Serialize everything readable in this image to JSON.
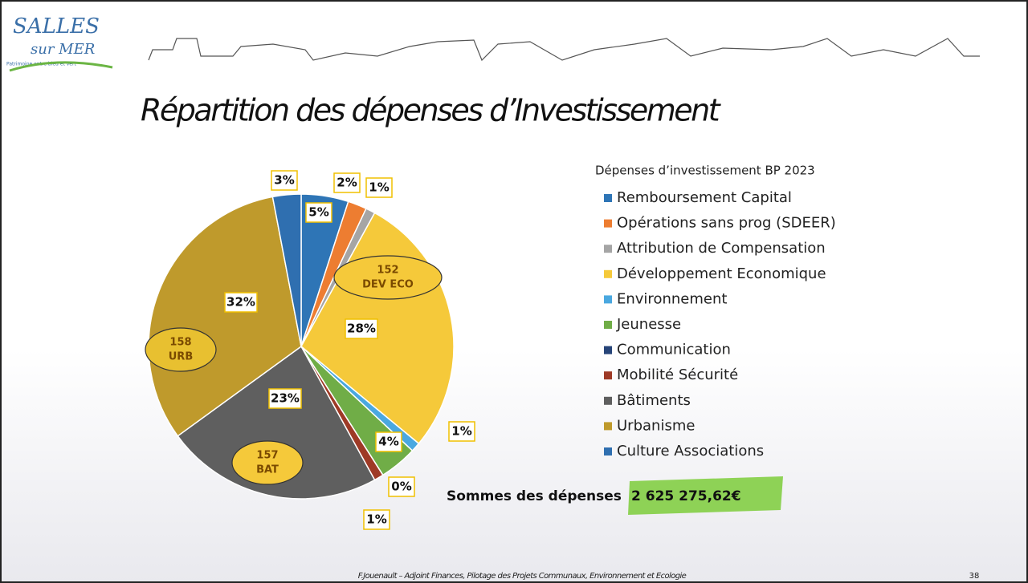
{
  "logo": {
    "name": "SALLES",
    "sub": "sur MER",
    "tagline": "Patrimoine entre bleu et vert"
  },
  "chart_data": {
    "type": "pie",
    "title": "Répartition des dépenses d’Investissement",
    "legend_title": "Dépenses d’investissement BP 2023",
    "categories": [
      "Remboursement Capital",
      "Opérations sans prog (SDEER)",
      "Attribution de Compensation",
      "Développement Economique",
      "Environnement",
      "Jeunesse",
      "Communication",
      "Mobilité Sécurité",
      "Bâtiments",
      "Urbanisme",
      "Culture Associations"
    ],
    "values": [
      5,
      2,
      1,
      28,
      1,
      4,
      0,
      1,
      23,
      32,
      3
    ],
    "value_labels": [
      "5%",
      "2%",
      "1%",
      "28%",
      "1%",
      "4%",
      "0%",
      "1%",
      "23%",
      "32%",
      "3%"
    ],
    "colors": [
      "#2e75b6",
      "#ed7d31",
      "#a5a5a5",
      "#f5c93a",
      "#4aa8e0",
      "#70ad47",
      "#264478",
      "#9e3a26",
      "#5f5f5f",
      "#bf9a2c",
      "#2f6fb0"
    ],
    "annotations": [
      {
        "value": 152,
        "label": "DEV ECO"
      },
      {
        "value": 157,
        "label": "BAT"
      },
      {
        "value": 158,
        "label": "URB"
      }
    ],
    "total_label": "Sommes des dépenses",
    "total": "2 625 275,62€"
  },
  "footer": "F.Jouenault – Adjoint Finances, Pilotage des Projets Communaux, Environnement et Ecologie",
  "page": "38"
}
